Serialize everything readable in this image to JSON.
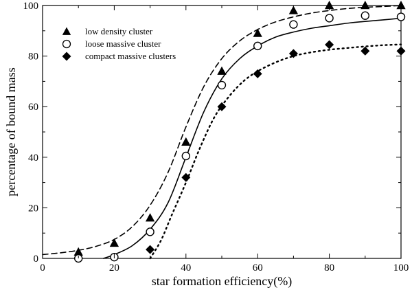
{
  "chart_data": {
    "type": "scatter",
    "title": "",
    "xlabel": "star formation efficiency(%)",
    "ylabel": "percentage of bound mass",
    "xlim": [
      0,
      100
    ],
    "ylim": [
      0,
      100
    ],
    "xticks": [
      0,
      20,
      40,
      60,
      80,
      100
    ],
    "yticks": [
      0,
      20,
      40,
      60,
      80,
      100
    ],
    "xtick_labels": [
      "0",
      "20",
      "40",
      "60",
      "80",
      "100"
    ],
    "ytick_labels": [
      "0",
      "20",
      "40",
      "60",
      "80",
      "100"
    ],
    "grid": false,
    "legend_position": "top-left",
    "series": [
      {
        "name": "low density cluster",
        "marker": "triangle",
        "fit_line": "dashed",
        "color": "#000000",
        "x": [
          10,
          20,
          30,
          40,
          50,
          60,
          70,
          80,
          90,
          100
        ],
        "y": [
          2.5,
          6,
          16,
          46,
          74,
          89,
          98,
          100,
          100,
          100
        ],
        "fit_x": [
          0,
          5,
          10,
          15,
          20,
          25,
          30,
          35,
          40,
          45,
          50,
          55,
          60,
          65,
          70,
          75,
          80,
          85,
          90,
          95,
          100
        ],
        "fit_y": [
          1.5,
          2.2,
          3.2,
          4.8,
          7.5,
          12.5,
          21,
          34,
          52,
          68,
          79,
          86,
          90.5,
          93.5,
          95.5,
          97,
          98,
          98.8,
          99.3,
          99.6,
          100
        ]
      },
      {
        "name": "loose massive cluster",
        "marker": "circle-open",
        "fit_line": "solid",
        "color": "#000000",
        "x": [
          10,
          20,
          30,
          40,
          50,
          60,
          70,
          80,
          90,
          100
        ],
        "y": [
          0,
          0.5,
          10.5,
          40.5,
          68.5,
          84,
          92.5,
          95,
          96,
          95.5
        ],
        "fit_x": [
          17,
          20,
          25,
          30,
          35,
          40,
          45,
          50,
          55,
          60,
          65,
          70,
          75,
          80,
          85,
          90,
          95,
          100
        ],
        "fit_y": [
          0,
          1.5,
          5,
          11.5,
          22,
          40,
          58,
          71,
          79,
          84,
          87.5,
          89.5,
          91,
          92,
          93,
          93.7,
          94.3,
          95
        ]
      },
      {
        "name": "compact massive clusters",
        "marker": "diamond",
        "fit_line": "dotted",
        "color": "#000000",
        "x": [
          30,
          40,
          50,
          60,
          70,
          80,
          90,
          100
        ],
        "y": [
          3.5,
          32,
          60,
          73,
          81,
          84.5,
          82,
          82
        ],
        "fit_x": [
          30,
          33,
          36,
          40,
          44,
          48,
          52,
          56,
          60,
          65,
          70,
          75,
          80,
          85,
          90,
          95,
          100
        ],
        "fit_y": [
          0,
          7,
          17,
          30,
          44,
          56,
          64,
          70,
          74,
          77.5,
          80,
          81.5,
          82.5,
          83.2,
          83.8,
          84.3,
          84.6
        ]
      }
    ]
  }
}
